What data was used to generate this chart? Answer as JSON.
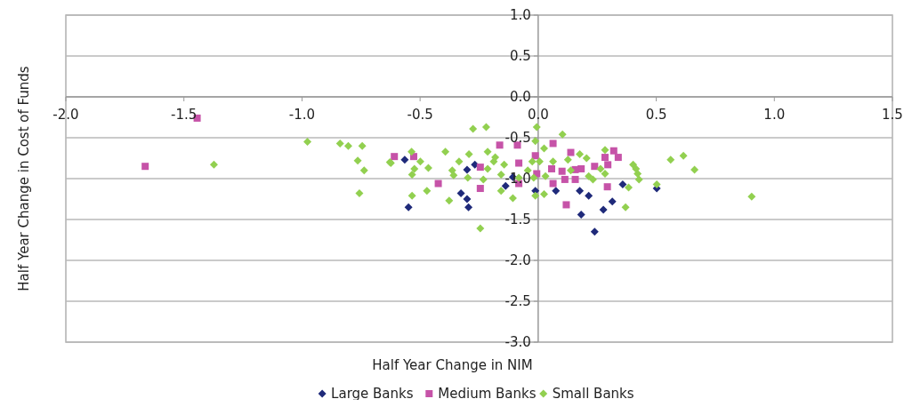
{
  "chart_data": {
    "type": "scatter",
    "xlabel": "Half Year Change in NIM",
    "ylabel": "Half Year Change in Cost of Funds",
    "xlim": [
      -2,
      1.5
    ],
    "ylim": [
      -3,
      1
    ],
    "xticks": [
      {
        "value": -2,
        "label": "-2.0"
      },
      {
        "value": -1.5,
        "label": "-1.5"
      },
      {
        "value": -1,
        "label": "-1.0"
      },
      {
        "value": -0.5,
        "label": "-0.5"
      },
      {
        "value": 0,
        "label": "0.0"
      },
      {
        "value": 0.5,
        "label": "0.5"
      },
      {
        "value": 1,
        "label": "1.0"
      },
      {
        "value": 1.5,
        "label": "1.5"
      }
    ],
    "yticks": [
      {
        "value": 1,
        "label": "1.0"
      },
      {
        "value": 0.5,
        "label": "0.5"
      },
      {
        "value": 0,
        "label": "0.0"
      },
      {
        "value": -0.5,
        "label": "-0.5"
      },
      {
        "value": -1,
        "label": "-1.0"
      },
      {
        "value": -1.5,
        "label": "-1.5"
      },
      {
        "value": -2,
        "label": "-2.0"
      },
      {
        "value": -2.5,
        "label": "-2.5"
      },
      {
        "value": -3,
        "label": "-3.0"
      }
    ],
    "grid": "y",
    "legend": "bottom",
    "series": [
      {
        "name": "Large Banks",
        "color": "#1f2a7a",
        "marker": "diamond",
        "x": [
          -0.565,
          -0.549,
          -0.301,
          -0.327,
          -0.301,
          -0.295,
          -0.268,
          -0.138,
          -0.107,
          -0.012,
          0.075,
          0.176,
          0.214,
          0.182,
          0.239,
          0.276,
          0.314,
          0.358,
          0.502
        ],
        "values": [
          -0.77,
          -1.35,
          -0.89,
          -1.18,
          -1.25,
          -1.35,
          -0.83,
          -1.09,
          -0.98,
          -1.15,
          -1.15,
          -1.15,
          -1.21,
          -1.44,
          -1.65,
          -1.38,
          -1.28,
          -1.07,
          -1.12
        ]
      },
      {
        "name": "Medium Banks",
        "color": "#c653a8",
        "marker": "square",
        "x": [
          -1.664,
          -1.444,
          -0.609,
          -0.527,
          -0.423,
          -0.245,
          -0.245,
          -0.163,
          -0.088,
          -0.082,
          -0.082,
          -0.012,
          -0.006,
          0.063,
          0.057,
          0.063,
          0.138,
          0.283,
          0.32,
          0.339,
          0.239,
          0.295,
          0.182,
          0.101,
          0.157,
          0.113,
          0.157,
          0.293,
          0.119
        ],
        "values": [
          -0.85,
          -0.26,
          -0.73,
          -0.73,
          -1.06,
          -0.86,
          -1.12,
          -0.59,
          -0.59,
          -0.81,
          -1.06,
          -0.72,
          -0.94,
          -0.57,
          -0.88,
          -1.06,
          -0.68,
          -0.74,
          -0.66,
          -0.74,
          -0.85,
          -0.83,
          -0.88,
          -0.91,
          -0.89,
          -1.01,
          -1.01,
          -1.1,
          -1.32
        ]
      },
      {
        "name": "Small Banks",
        "color": "#92d050",
        "marker": "diamond",
        "x": [
          -1.373,
          -0.977,
          -0.839,
          -0.804,
          -0.745,
          -0.764,
          -0.737,
          -0.757,
          -0.628,
          -0.624,
          -0.536,
          -0.499,
          -0.524,
          -0.534,
          -0.465,
          -0.471,
          -0.534,
          -0.393,
          -0.377,
          -0.364,
          -0.335,
          -0.358,
          -0.293,
          -0.298,
          -0.276,
          -0.22,
          -0.245,
          -0.232,
          -0.214,
          -0.214,
          -0.188,
          -0.182,
          -0.157,
          -0.144,
          -0.082,
          -0.157,
          -0.107,
          -0.044,
          -0.006,
          -0.012,
          -0.025,
          0.006,
          -0.019,
          -0.012,
          0.025,
          0.025,
          0.063,
          0.031,
          0.103,
          0.176,
          0.205,
          0.126,
          0.283,
          0.264,
          0.283,
          0.138,
          0.214,
          0.232,
          0.383,
          0.37,
          0.402,
          0.414,
          0.421,
          0.427,
          0.502,
          0.561,
          0.615,
          0.662,
          0.904
        ],
        "values": [
          -0.83,
          -0.55,
          -0.57,
          -0.6,
          -0.6,
          -0.78,
          -0.9,
          -1.18,
          -0.8,
          -0.81,
          -0.67,
          -0.79,
          -0.88,
          -0.95,
          -0.87,
          -1.15,
          -1.21,
          -0.67,
          -1.27,
          -0.9,
          -0.79,
          -0.96,
          -0.7,
          -0.99,
          -0.39,
          -0.37,
          -1.61,
          -1.01,
          -0.67,
          -0.88,
          -0.79,
          -0.74,
          -0.95,
          -0.83,
          -0.99,
          -1.15,
          -1.24,
          -0.9,
          -0.37,
          -0.54,
          -0.79,
          -0.79,
          -0.99,
          -1.21,
          -1.19,
          -0.63,
          -0.79,
          -0.97,
          -0.46,
          -0.7,
          -0.75,
          -0.77,
          -0.65,
          -0.88,
          -0.94,
          -0.9,
          -0.97,
          -1.01,
          -1.11,
          -1.35,
          -0.83,
          -0.88,
          -0.94,
          -1.01,
          -1.07,
          -0.77,
          -0.72,
          -0.89,
          -1.22
        ]
      }
    ]
  }
}
